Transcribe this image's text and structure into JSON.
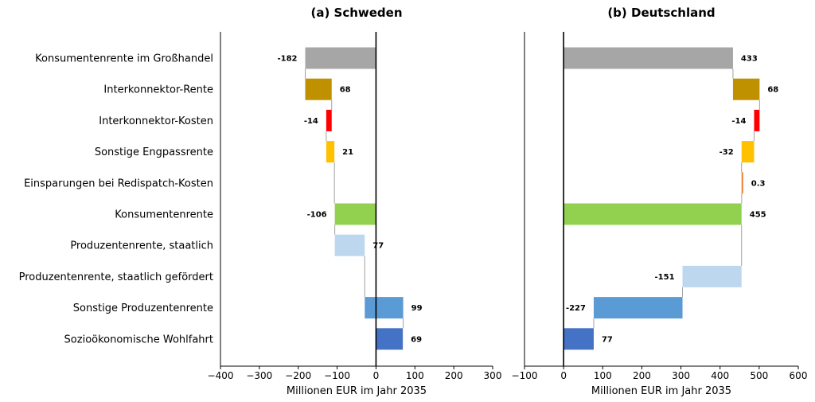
{
  "chart_data": [
    {
      "type": "bar",
      "title": "(a) Schweden",
      "xlabel": "Millionen EUR im Jahr 2035",
      "xlim": [
        -400,
        300
      ],
      "xticks": [
        -400,
        -300,
        -200,
        -100,
        0,
        100,
        200,
        300
      ],
      "categories": [
        "Konsumentenrente im Großhandel",
        "Interkonnektor-Rente",
        "Interkonnektor-Kosten",
        "Sonstige Engpassrente",
        "Einsparungen bei Redispatch-Kosten",
        "Konsumentenrente",
        "Produzentenrente, staatlich",
        "Produzentenrente, staatlich gefördert",
        "Sonstige Produzentenrente",
        "Sozioökonomische Wohlfahrt"
      ],
      "segments": [
        {
          "from": 0,
          "to": -182,
          "label": "-182",
          "color": "#a6a6a6"
        },
        {
          "from": -182,
          "to": -114,
          "label": "68",
          "color": "#bf9000"
        },
        {
          "from": -114,
          "to": -128,
          "label": "-14",
          "color": "#ff0000"
        },
        {
          "from": -128,
          "to": -107,
          "label": "21",
          "color": "#ffc000"
        },
        null,
        {
          "from": 0,
          "to": -106,
          "label": "-106",
          "color": "#92d050"
        },
        {
          "from": -106,
          "to": -29,
          "label": "77",
          "color": "#bdd7ee"
        },
        null,
        {
          "from": -29,
          "to": 70,
          "label": "99",
          "color": "#5b9bd5"
        },
        {
          "from": 0,
          "to": 69,
          "label": "69",
          "color": "#4472c4"
        }
      ]
    },
    {
      "type": "bar",
      "title": "(b) Deutschland",
      "xlabel": "Millionen EUR im Jahr 2035",
      "xlim": [
        -100,
        600
      ],
      "xticks": [
        -100,
        0,
        100,
        200,
        300,
        400,
        500,
        600
      ],
      "categories": [
        "Konsumentenrente im Großhandel",
        "Interkonnektor-Rente",
        "Interkonnektor-Kosten",
        "Sonstige Engpassrente",
        "Einsparungen bei Redispatch-Kosten",
        "Konsumentenrente",
        "Produzentenrente, staatlich",
        "Produzentenrente, staatlich gefördert",
        "Sonstige Produzentenrente",
        "Sozioökonomische Wohlfahrt"
      ],
      "segments": [
        {
          "from": 0,
          "to": 433,
          "label": "433",
          "color": "#a6a6a6"
        },
        {
          "from": 433,
          "to": 501,
          "label": "68",
          "color": "#bf9000"
        },
        {
          "from": 501,
          "to": 487,
          "label": "-14",
          "color": "#ff0000"
        },
        {
          "from": 487,
          "to": 455,
          "label": "-32",
          "color": "#ffc000"
        },
        {
          "from": 455,
          "to": 455.3,
          "label": "0.3",
          "color": "#ed7d31"
        },
        {
          "from": 0,
          "to": 455,
          "label": "455",
          "color": "#92d050"
        },
        null,
        {
          "from": 455,
          "to": 304,
          "label": "-151",
          "color": "#bdd7ee"
        },
        {
          "from": 304,
          "to": 77,
          "label": "-227",
          "color": "#5b9bd5"
        },
        {
          "from": 0,
          "to": 77,
          "label": "77",
          "color": "#4472c4"
        }
      ]
    }
  ]
}
